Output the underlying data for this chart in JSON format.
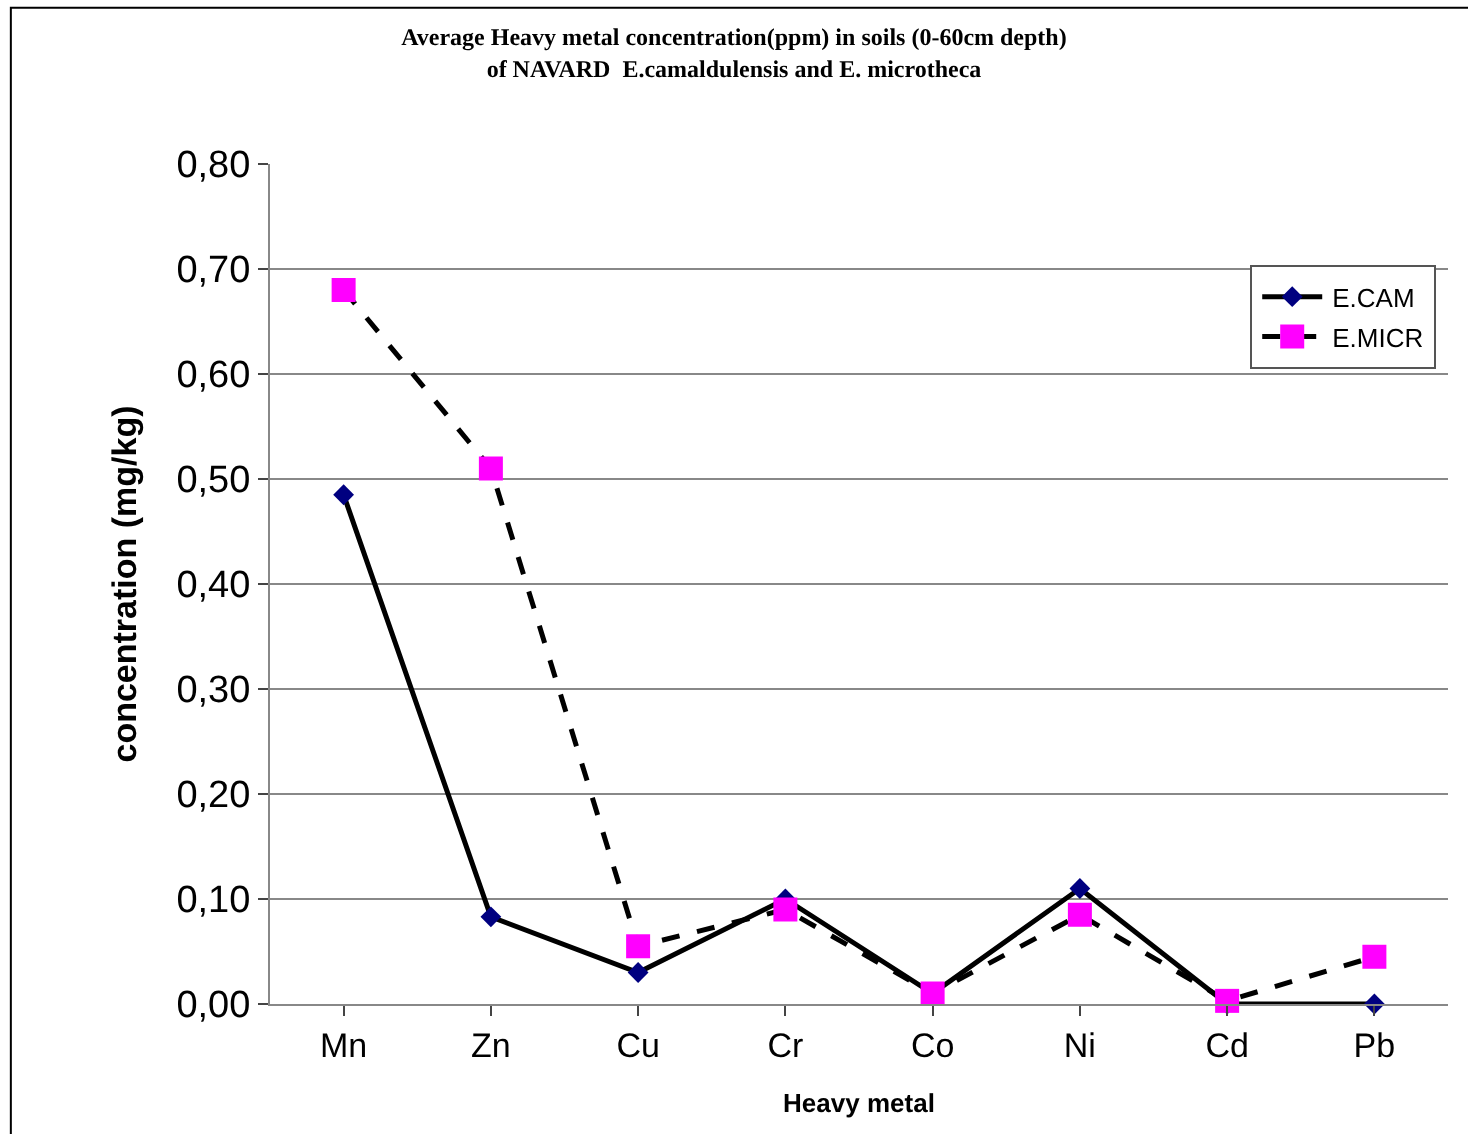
{
  "chart_data": {
    "type": "line",
    "title": "Average Heavy metal concentration(ppm) in soils (0-60cm depth)\nof NAVARD  E.camaldulensis and E. microtheca",
    "xlabel": "Heavy metal",
    "ylabel": "concentration (mg/kg)",
    "categories": [
      "Mn",
      "Zn",
      "Cu",
      "Cr",
      "Co",
      "Ni",
      "Cd",
      "Pb"
    ],
    "series": [
      {
        "name": "E.CAM",
        "color": "#000080",
        "marker": "diamond",
        "line_style": "solid",
        "values": [
          0.485,
          0.083,
          0.03,
          0.1,
          0.01,
          0.11,
          0.0,
          0.0
        ]
      },
      {
        "name": "E.MICR",
        "color": "#ff00ff",
        "marker": "square",
        "line_style": "dashed",
        "values": [
          0.68,
          0.51,
          0.055,
          0.09,
          0.01,
          0.085,
          0.003,
          0.045
        ]
      }
    ],
    "ylim": [
      0,
      0.8
    ],
    "yticks": [
      {
        "value": 0,
        "label": "0,00"
      },
      {
        "value": 0.1,
        "label": "0,10"
      },
      {
        "value": 0.2,
        "label": "0,20"
      },
      {
        "value": 0.3,
        "label": "0,30"
      },
      {
        "value": 0.4,
        "label": "0,40"
      },
      {
        "value": 0.5,
        "label": "0,50"
      },
      {
        "value": 0.6,
        "label": "0,60"
      },
      {
        "value": 0.7,
        "label": "0,70"
      },
      {
        "value": 0.8,
        "label": "0,80"
      }
    ],
    "grid": "y",
    "legend": "top right"
  }
}
